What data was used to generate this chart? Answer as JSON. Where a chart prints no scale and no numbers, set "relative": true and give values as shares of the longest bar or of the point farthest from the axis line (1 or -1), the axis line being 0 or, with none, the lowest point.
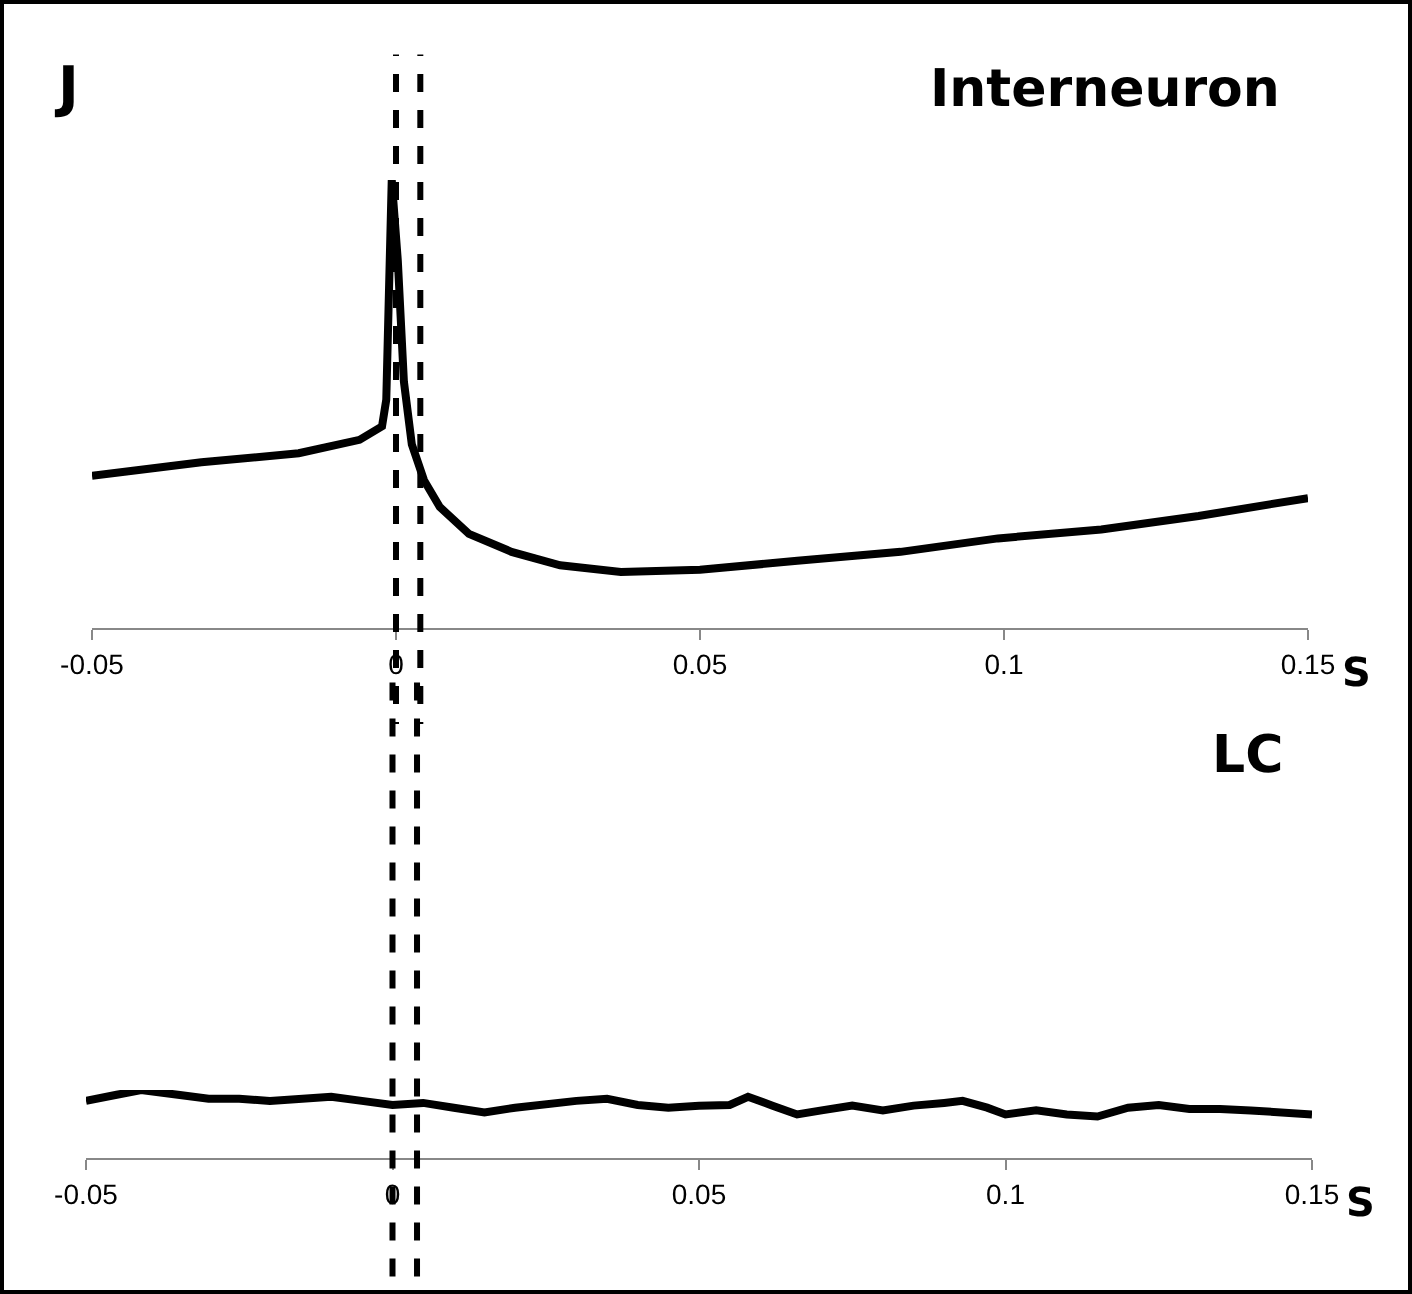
{
  "chart_data": [
    {
      "type": "line",
      "title": "Interneuron",
      "xlabel": "S",
      "annotations": [
        "J"
      ],
      "relative": true,
      "color": "#000000",
      "line_style": "solid",
      "marker": "none",
      "x": [
        -0.05,
        -0.032,
        -0.016,
        -0.006,
        -0.0023,
        -0.0016,
        -0.0007,
        0.0003,
        0.0013,
        0.0026,
        0.0046,
        0.0072,
        0.012,
        0.019,
        0.027,
        0.037,
        0.05,
        0.066,
        0.083,
        0.099,
        0.116,
        0.132,
        0.15
      ],
      "values": [
        0.34,
        0.37,
        0.39,
        0.42,
        0.45,
        0.51,
        1,
        0.82,
        0.55,
        0.41,
        0.33,
        0.27,
        0.21,
        0.17,
        0.14,
        0.125,
        0.13,
        0.15,
        0.17,
        0.2,
        0.22,
        0.25,
        0.29
      ],
      "xlim": [
        -0.05,
        0.15
      ],
      "xticks": [
        -0.05,
        0,
        0.05,
        0.1,
        0.15
      ],
      "ref_lines": [
        {
          "axis": "x",
          "value": 0,
          "color": "#000000",
          "line_style": "dashed"
        },
        {
          "axis": "x",
          "value": 0.004,
          "color": "#000000",
          "line_style": "dashed"
        }
      ]
    },
    {
      "type": "line",
      "title": "LC",
      "xlabel": "S",
      "relative": true,
      "color": "#000000",
      "line_style": "solid",
      "marker": "none",
      "x": [
        -0.05,
        -0.045,
        -0.041,
        -0.035,
        -0.03,
        -0.025,
        -0.02,
        -0.01,
        -0.005,
        0,
        0.005,
        0.01,
        0.015,
        0.02,
        0.03,
        0.035,
        0.04,
        0.045,
        0.05,
        0.055,
        0.058,
        0.062,
        0.066,
        0.07,
        0.075,
        0.08,
        0.085,
        0.09,
        0.093,
        0.097,
        0.1,
        0.105,
        0.11,
        0.115,
        0.12,
        0.125,
        0.13,
        0.135,
        0.14,
        0.15
      ],
      "values": [
        0.84,
        0.93,
        1,
        0.93,
        0.87,
        0.87,
        0.84,
        0.9,
        0.84,
        0.78,
        0.81,
        0.74,
        0.67,
        0.74,
        0.84,
        0.87,
        0.78,
        0.74,
        0.77,
        0.78,
        0.9,
        0.77,
        0.64,
        0.7,
        0.77,
        0.7,
        0.77,
        0.81,
        0.84,
        0.74,
        0.64,
        0.7,
        0.64,
        0.61,
        0.74,
        0.78,
        0.72,
        0.72,
        0.7,
        0.64
      ],
      "xlim": [
        -0.05,
        0.15
      ],
      "xticks": [
        -0.05,
        0,
        0.05,
        0.1,
        0.15
      ],
      "ref_lines": [
        {
          "axis": "x",
          "value": 0,
          "color": "#000000",
          "line_style": "dashed"
        },
        {
          "axis": "x",
          "value": 0.004,
          "color": "#000000",
          "line_style": "dashed"
        }
      ]
    }
  ]
}
